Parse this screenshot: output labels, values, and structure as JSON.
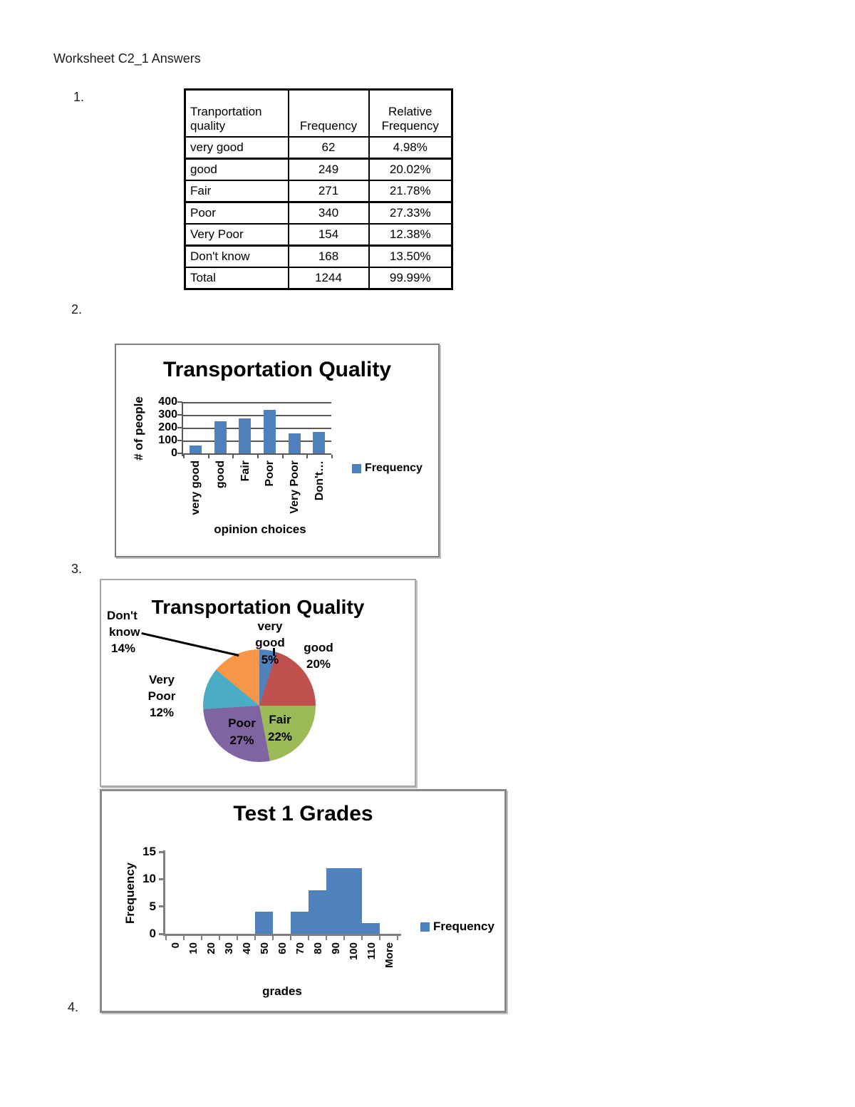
{
  "page": {
    "heading": "Worksheet C2_1 Answers",
    "items": {
      "q1": "1.",
      "q2": "2.",
      "q3": "3.",
      "q4": "4."
    }
  },
  "table": {
    "headers": [
      "Tranportation quality",
      "Frequency",
      "Relative Frequency"
    ],
    "rows": [
      {
        "label": "very good",
        "frequency": "62",
        "relative": "4.98%"
      },
      {
        "label": "good",
        "frequency": "249",
        "relative": "20.02%"
      },
      {
        "label": "Fair",
        "frequency": "271",
        "relative": "21.78%"
      },
      {
        "label": "Poor",
        "frequency": "340",
        "relative": "27.33%"
      },
      {
        "label": "Very Poor",
        "frequency": "154",
        "relative": "12.38%"
      },
      {
        "label": "Don't know",
        "frequency": "168",
        "relative": "13.50%"
      },
      {
        "label": "Total",
        "frequency": "1244",
        "relative": "99.99%"
      }
    ]
  },
  "pie_chart": {
    "labels": {
      "dont_know": [
        "Don't",
        "know",
        "14%"
      ],
      "very_good": [
        "very",
        "good"
      ],
      "very_good_pct": "5%",
      "good": [
        "good",
        "20%"
      ],
      "fair": [
        "Fair",
        "22%"
      ],
      "poor": [
        "Poor",
        "27%"
      ],
      "very_poor": [
        "Very",
        "Poor",
        "12%"
      ]
    }
  },
  "chart_data": [
    {
      "type": "bar",
      "title": "Transportation Quality",
      "xlabel": "opinion choices",
      "ylabel": "# of people",
      "categories": [
        "very good",
        "good",
        "Fair",
        "Poor",
        "Very Poor",
        "Don't…"
      ],
      "values": [
        62,
        249,
        271,
        340,
        154,
        168
      ],
      "series_name": "Frequency",
      "ylim": [
        0,
        400
      ],
      "yticks": [
        0,
        100,
        200,
        300,
        400
      ],
      "grid": true,
      "legend_position": "right"
    },
    {
      "type": "pie",
      "title": "Transportation Quality",
      "labels": [
        "very good",
        "good",
        "Fair",
        "Poor",
        "Very Poor",
        "Don't know"
      ],
      "values_percent": [
        5,
        20,
        22,
        27,
        12,
        14
      ],
      "colors": [
        "#4f81bd",
        "#c0504d",
        "#9bbb59",
        "#8064a2",
        "#4bacc6",
        "#f79646"
      ],
      "start_angle_deg": 0,
      "direction": "clockwise"
    },
    {
      "type": "bar",
      "title": "Test 1 Grades",
      "xlabel": "grades",
      "ylabel": "Frequency",
      "categories": [
        "0",
        "10",
        "20",
        "30",
        "40",
        "50",
        "60",
        "70",
        "80",
        "90",
        "100",
        "110",
        "More"
      ],
      "values": [
        0,
        0,
        0,
        0,
        0,
        4,
        0,
        4,
        8,
        12,
        12,
        2,
        0
      ],
      "series_name": "Frequency",
      "ylim": [
        0,
        15
      ],
      "yticks": [
        0,
        5,
        10,
        15
      ],
      "grid": false,
      "legend_position": "right",
      "bar_gap": 0
    }
  ],
  "colors": {
    "bar_blue": "#4f81bd",
    "gridline": "#595959",
    "axis_gray": "#7f7f7f",
    "text_black": "#000000"
  }
}
